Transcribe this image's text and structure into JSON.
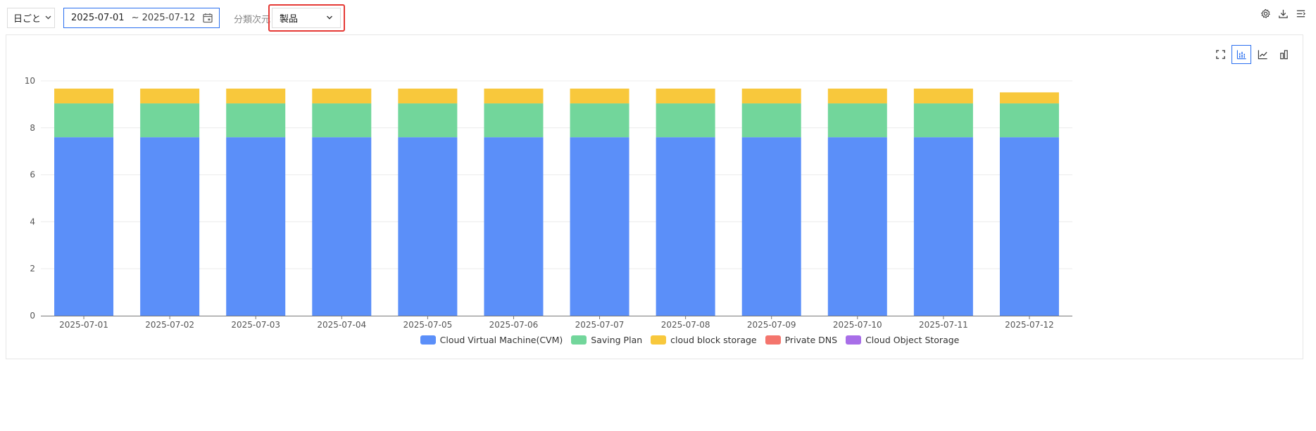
{
  "toolbar": {
    "granularity_label": "日ごと",
    "date_start": "2025-07-01",
    "date_end": "~ 2025-07-12",
    "dimension_label": "分類次元",
    "dimension_value": "製品"
  },
  "icons": {
    "top": [
      "gear-icon",
      "download-icon",
      "list-settings-icon"
    ],
    "chart": [
      "fullscreen-icon",
      "stacked-bar-icon",
      "line-chart-icon",
      "bar-chart-icon"
    ]
  },
  "chart_data": {
    "type": "bar",
    "stacked": true,
    "categories": [
      "2025-07-01",
      "2025-07-02",
      "2025-07-03",
      "2025-07-04",
      "2025-07-05",
      "2025-07-06",
      "2025-07-07",
      "2025-07-08",
      "2025-07-09",
      "2025-07-10",
      "2025-07-11",
      "2025-07-12"
    ],
    "series": [
      {
        "name": "Cloud Virtual Machine(CVM)",
        "color": "#5b8ff9",
        "values": [
          7.6,
          7.6,
          7.6,
          7.6,
          7.6,
          7.6,
          7.6,
          7.6,
          7.6,
          7.6,
          7.6,
          7.6
        ]
      },
      {
        "name": "Saving Plan",
        "color": "#72d69b",
        "values": [
          1.44,
          1.44,
          1.44,
          1.44,
          1.44,
          1.44,
          1.44,
          1.44,
          1.44,
          1.44,
          1.44,
          1.44
        ]
      },
      {
        "name": "cloud block storage",
        "color": "#f8c83c",
        "values": [
          0.63,
          0.63,
          0.63,
          0.63,
          0.63,
          0.63,
          0.63,
          0.63,
          0.63,
          0.63,
          0.63,
          0.47
        ]
      },
      {
        "name": "Private DNS",
        "color": "#f4756d",
        "values": [
          0,
          0,
          0,
          0,
          0,
          0,
          0,
          0,
          0,
          0,
          0,
          0
        ]
      },
      {
        "name": "Cloud Object Storage",
        "color": "#a86ee8",
        "values": [
          0,
          0,
          0,
          0,
          0,
          0,
          0,
          0,
          0,
          0,
          0,
          0
        ]
      }
    ],
    "ylim": [
      0,
      10
    ],
    "yticks": [
      "0",
      "2",
      "4",
      "6",
      "8",
      "10"
    ],
    "grid": true,
    "legend_position": "bottom"
  }
}
